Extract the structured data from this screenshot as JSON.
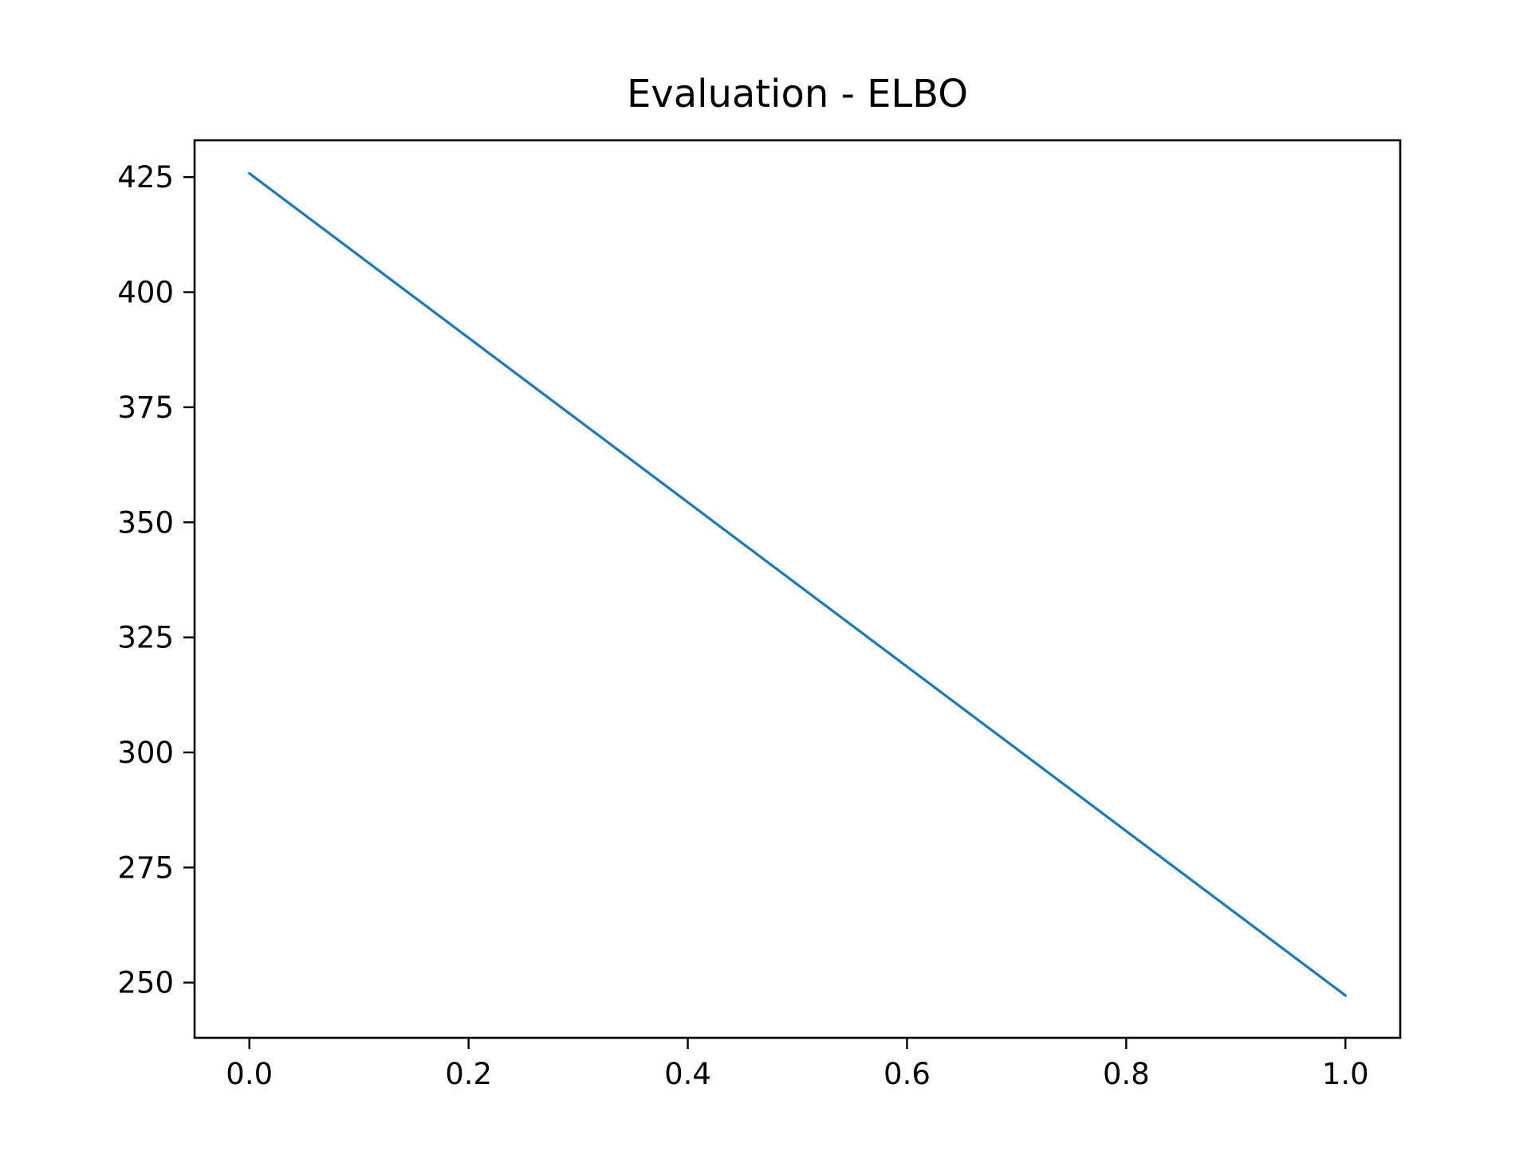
{
  "chart_data": {
    "type": "line",
    "title": "Evaluation - ELBO",
    "xlabel": "",
    "ylabel": "",
    "xlim": [
      -0.05,
      1.05
    ],
    "ylim": [
      238.0,
      433.0
    ],
    "x_ticks": [
      0.0,
      0.2,
      0.4,
      0.6,
      0.8,
      1.0
    ],
    "x_tick_labels": [
      "0.0",
      "0.2",
      "0.4",
      "0.6",
      "0.8",
      "1.0"
    ],
    "y_ticks": [
      250,
      275,
      300,
      325,
      350,
      375,
      400,
      425
    ],
    "y_tick_labels": [
      "250",
      "275",
      "300",
      "325",
      "350",
      "375",
      "400",
      "425"
    ],
    "grid": false,
    "legend": "none",
    "series": [
      {
        "color": "#1f77b4",
        "x": [
          0.0,
          1.0
        ],
        "y": [
          425.8,
          247.2
        ]
      }
    ]
  }
}
